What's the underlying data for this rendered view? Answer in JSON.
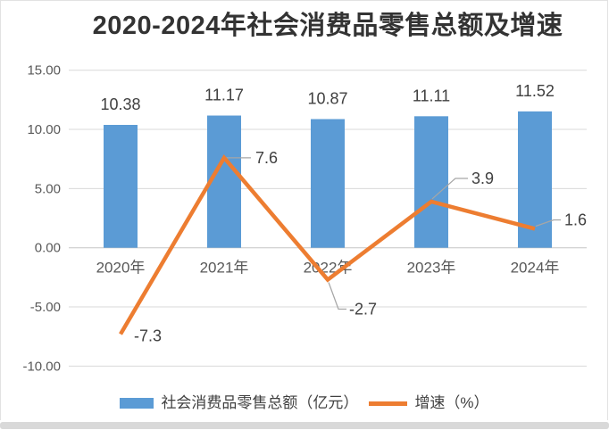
{
  "chart": {
    "title": "2020-2024年社会消费品零售总额及增速"
  },
  "chart_data": {
    "type": "combo-bar-line",
    "title": "2020-2024年社会消费品零售总额及增速",
    "categories": [
      "2020年",
      "2021年",
      "2022年",
      "2023年",
      "2024年"
    ],
    "series": [
      {
        "name": "社会消费品零售总额（亿元）",
        "type": "bar",
        "values": [
          10.38,
          11.17,
          10.87,
          11.11,
          11.52
        ],
        "labels": [
          "10.38",
          "11.17",
          "10.87",
          "11.11",
          "11.52"
        ]
      },
      {
        "name": "增速（%）",
        "type": "line",
        "values": [
          -7.3,
          7.6,
          -2.7,
          3.9,
          1.6
        ],
        "labels": [
          "-7.3",
          "7.6",
          "-2.7",
          "3.9",
          "1.6"
        ]
      }
    ],
    "y_axis": {
      "min": -10,
      "max": 15,
      "ticks": [
        15,
        10,
        5,
        0,
        -5,
        -10
      ],
      "tick_labels": [
        "15.00",
        "10.00",
        "5.00",
        "0.00",
        "-5.00",
        "-10.00"
      ]
    },
    "xlabel": "",
    "ylabel": "",
    "grid": true,
    "legend_position": "bottom"
  },
  "colors": {
    "bar": "#5B9BD5",
    "line": "#ED7D31",
    "grid": "#D9D9D9",
    "zero_line": "#C6C6C6",
    "leader": "#A6A6A6",
    "axis_text": "#595959",
    "label_text": "#404040",
    "title_text": "#333333"
  }
}
